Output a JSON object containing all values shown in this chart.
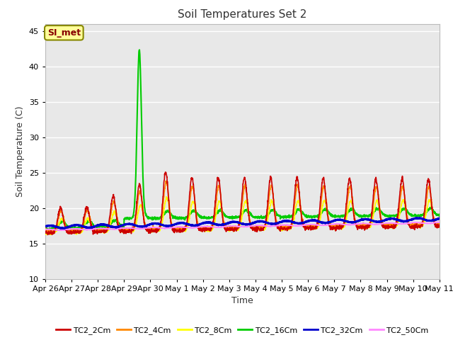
{
  "title": "Soil Temperatures Set 2",
  "xlabel": "Time",
  "ylabel": "Soil Temperature (C)",
  "ylim": [
    10,
    46
  ],
  "yticks": [
    10,
    15,
    20,
    25,
    30,
    35,
    40,
    45
  ],
  "plot_bg_color": "#e8e8e8",
  "fig_bg_color": "#ffffff",
  "grid_color": "#ffffff",
  "annotation_text": "SI_met",
  "annotation_bg": "#ffff99",
  "annotation_border": "#888800",
  "series": {
    "TC2_2Cm": {
      "color": "#cc0000",
      "lw": 1.2
    },
    "TC2_4Cm": {
      "color": "#ff8800",
      "lw": 1.2
    },
    "TC2_8Cm": {
      "color": "#ffff00",
      "lw": 1.2
    },
    "TC2_16Cm": {
      "color": "#00cc00",
      "lw": 1.5
    },
    "TC2_32Cm": {
      "color": "#0000cc",
      "lw": 2.0
    },
    "TC2_50Cm": {
      "color": "#ff88ff",
      "lw": 1.2
    }
  },
  "x_tick_labels": [
    "Apr 26",
    "Apr 27",
    "Apr 28",
    "Apr 29",
    "Apr 30",
    "May 1",
    "May 2",
    "May 3",
    "May 4",
    "May 5",
    "May 6",
    "May 7",
    "May 8",
    "May 9",
    "May 10",
    "May 11"
  ],
  "x_tick_positions": [
    0,
    1,
    2,
    3,
    4,
    5,
    6,
    7,
    8,
    9,
    10,
    11,
    12,
    13,
    14,
    15
  ]
}
